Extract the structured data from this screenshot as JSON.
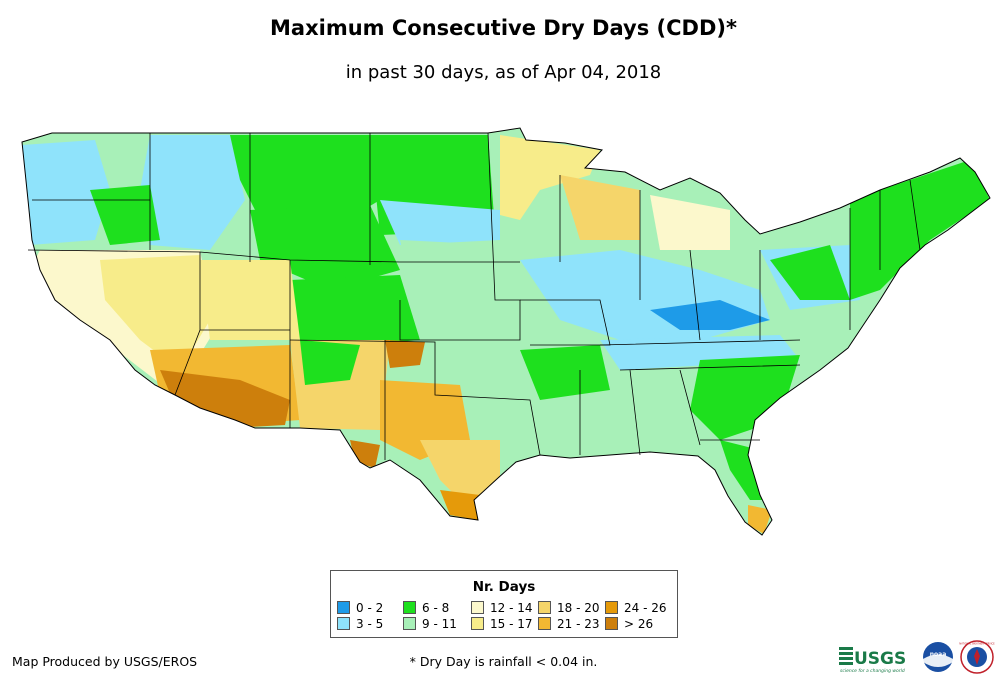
{
  "header": {
    "title": "Maximum Consecutive Dry Days (CDD)*",
    "subtitle": "in past 30 days, as of Apr 04, 2018"
  },
  "legend": {
    "title": "Nr. Days",
    "items": [
      {
        "label": "0 - 2",
        "color": "#1e9be8"
      },
      {
        "label": "3 - 5",
        "color": "#8fe3fb"
      },
      {
        "label": "6 - 8",
        "color": "#1ee01e"
      },
      {
        "label": "9 - 11",
        "color": "#a8f0b8"
      },
      {
        "label": "12 - 14",
        "color": "#fcf8cc"
      },
      {
        "label": "15 - 17",
        "color": "#f7ec8a"
      },
      {
        "label": "18 - 20",
        "color": "#f5d56a"
      },
      {
        "label": "21 - 23",
        "color": "#f2b832"
      },
      {
        "label": "24 - 26",
        "color": "#e59a0a"
      },
      {
        "label": "> 26",
        "color": "#cd7f0c"
      }
    ]
  },
  "footer": {
    "credit": "Map Produced by USGS/EROS",
    "footnote": "* Dry Day is rainfall < 0.04 in."
  },
  "logos": {
    "usgs_text": "USGS",
    "usgs_tagline": "science for a changing world",
    "noaa_text": "noaa",
    "nws_text": "NATIONAL WEATHER SERVICE"
  }
}
